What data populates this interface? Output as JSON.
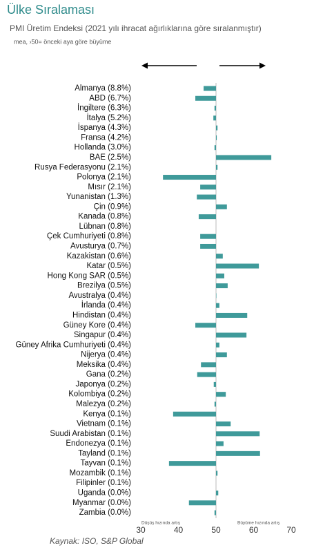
{
  "chart_data": {
    "type": "hbar",
    "title": "Ülke Sıralaması",
    "subtitle": "PMI Üretim Endeksi (2021 yılı ihracat ağırlıklarına göre sıralanmıştır)",
    "note": "mea, ›50= önceki aya göre büyüme",
    "source": "Kaynak: ISO, S&P Global",
    "annotations": [
      "Düşüş hızında artış",
      "Büyüme hızında artış"
    ],
    "categories": [
      "Almanya (8.8%)",
      "ABD (6.7%)",
      "İngiltere (6.3%)",
      "İtalya (5.2%)",
      "İspanya (4.3%)",
      "Fransa (4.2%)",
      "Hollanda (3.0%)",
      "BAE (2.5%)",
      "Rusya Federasyonu (2.1%)",
      "Polonya (2.1%)",
      "Mısır (2.1%)",
      "Yunanistan (1.3%)",
      "Çin (0.9%)",
      "Kanada (0.8%)",
      "Lübnan (0.8%)",
      "Çek Cumhuriyeti (0.8%)",
      "Avusturya (0.7%)",
      "Kazakistan (0.6%)",
      "Katar (0.5%)",
      "Hong Kong SAR (0.5%)",
      "Brezilya (0.5%)",
      "Avustralya (0.4%)",
      "İrlanda (0.4%)",
      "Hindistan (0.4%)",
      "Güney Kore (0.4%)",
      "Singapur (0.4%)",
      "Güney Afrika Cumhuriyeti (0.4%)",
      "Nijerya (0.4%)",
      "Meksika (0.4%)",
      "Gana (0.2%)",
      "Japonya (0.2%)",
      "Kolombiya (0.2%)",
      "Malezya (0.2%)",
      "Kenya (0.1%)",
      "Vietnam (0.1%)",
      "Suudi Arabistan (0.1%)",
      "Endonezya (0.1%)",
      "Tayland (0.1%)",
      "Tayvan (0.1%)",
      "Mozambik (0.1%)",
      "Filipinler (0.1%)",
      "Uganda (0.0%)",
      "Myanmar (0.0%)",
      "Zambia (0.0%)"
    ],
    "values": [
      46.7,
      44.5,
      49.6,
      49.3,
      50.4,
      50.2,
      49.6,
      64.7,
      50.4,
      35.9,
      45.8,
      44.9,
      52.9,
      45.4,
      50.0,
      45.8,
      45.8,
      51.8,
      61.4,
      52.2,
      53.1,
      50.1,
      50.9,
      58.3,
      44.5,
      58.1,
      50.9,
      52.9,
      46.0,
      45.0,
      49.4,
      52.6,
      49.6,
      38.6,
      53.9,
      61.6,
      52.0,
      61.7,
      37.5,
      50.4,
      50.0,
      50.6,
      42.8,
      49.6
    ],
    "color": "#3f9a9a",
    "reference_line": 50,
    "xlim": [
      30,
      70
    ],
    "xticks": [
      30,
      40,
      50,
      60,
      70
    ]
  }
}
